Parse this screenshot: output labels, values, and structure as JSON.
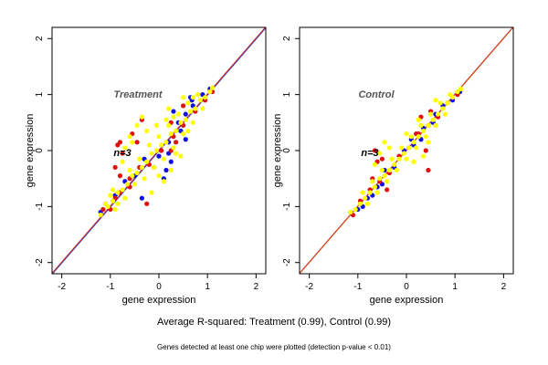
{
  "figure": {
    "caption": "Average R-squared: Treatment (0.99), Control (0.99)",
    "footnote": "Genes detected at least one chip were plotted (detection p-value < 0.01)"
  },
  "chart_data": [
    {
      "type": "scatter",
      "title": "Treatment",
      "annotation": "n=3",
      "xlabel": "gene expression",
      "ylabel": "gene expression",
      "xlim": [
        -2.2,
        2.2
      ],
      "ylim": [
        -2.2,
        2.2
      ],
      "xticks": [
        -2,
        -1,
        0,
        1,
        2
      ],
      "yticks": [
        -2,
        -1,
        0,
        1,
        2
      ],
      "grid": false,
      "reference_lines": [
        {
          "color": "#d4a017",
          "slope": 1,
          "intercept": 0
        },
        {
          "color": "#2f3fbf",
          "slope": 1,
          "intercept": -0.01
        },
        {
          "color": "#d42a2a",
          "slope": 1,
          "intercept": 0.01
        }
      ],
      "series": [
        {
          "color": "#1010e0",
          "values": [
            [
              -1.2,
              -1.1
            ],
            [
              -1.1,
              -0.95
            ],
            [
              -0.9,
              -0.8
            ],
            [
              -0.7,
              -0.55
            ],
            [
              -0.5,
              -0.45
            ],
            [
              -0.3,
              -0.15
            ],
            [
              0.0,
              -0.1
            ],
            [
              0.2,
              0.15
            ],
            [
              0.4,
              0.5
            ],
            [
              0.55,
              0.65
            ],
            [
              0.7,
              0.8
            ],
            [
              0.9,
              1.0
            ],
            [
              1.05,
              1.1
            ],
            [
              0.65,
              0.95
            ],
            [
              0.68,
              0.9
            ],
            [
              0.55,
              0.2
            ],
            [
              0.25,
              -0.2
            ],
            [
              0.15,
              -0.35
            ],
            [
              0.1,
              -0.5
            ],
            [
              -0.1,
              -0.3
            ],
            [
              -0.35,
              -0.85
            ],
            [
              0.2,
              -0.05
            ],
            [
              0.3,
              0.7
            ],
            [
              0.45,
              0.35
            ]
          ]
        },
        {
          "color": "#e01010",
          "values": [
            [
              -1.15,
              -1.05
            ],
            [
              -1.0,
              -1.05
            ],
            [
              -0.8,
              -0.75
            ],
            [
              -0.6,
              -0.65
            ],
            [
              -0.4,
              -0.3
            ],
            [
              -0.2,
              -0.25
            ],
            [
              0.05,
              0.0
            ],
            [
              0.3,
              0.25
            ],
            [
              0.5,
              0.45
            ],
            [
              0.75,
              0.7
            ],
            [
              0.95,
              0.9
            ],
            [
              1.1,
              1.05
            ],
            [
              -0.8,
              0.15
            ],
            [
              -0.85,
              0.1
            ],
            [
              -0.75,
              -0.05
            ],
            [
              -0.9,
              -0.3
            ],
            [
              -0.8,
              -0.45
            ],
            [
              -0.6,
              -0.5
            ],
            [
              -0.35,
              0.55
            ],
            [
              -0.55,
              0.3
            ],
            [
              -0.9,
              -0.85
            ],
            [
              -0.25,
              -0.95
            ],
            [
              0.25,
              0.5
            ],
            [
              0.5,
              0.8
            ],
            [
              0.35,
              0.15
            ],
            [
              0.25,
              0.0
            ],
            [
              -0.45,
              0.15
            ]
          ]
        },
        {
          "color": "#ffff00",
          "values": [
            [
              -1.2,
              -1.15
            ],
            [
              -1.05,
              -1.0
            ],
            [
              -0.95,
              -0.9
            ],
            [
              -0.85,
              -0.75
            ],
            [
              -0.75,
              -0.7
            ],
            [
              -0.65,
              -0.6
            ],
            [
              -0.55,
              -0.45
            ],
            [
              -0.45,
              -0.4
            ],
            [
              -0.35,
              -0.3
            ],
            [
              -0.25,
              -0.2
            ],
            [
              -0.15,
              -0.05
            ],
            [
              -0.05,
              0.0
            ],
            [
              0.05,
              0.1
            ],
            [
              0.15,
              0.15
            ],
            [
              0.25,
              0.3
            ],
            [
              0.35,
              0.35
            ],
            [
              0.45,
              0.5
            ],
            [
              0.55,
              0.55
            ],
            [
              0.65,
              0.7
            ],
            [
              0.75,
              0.75
            ],
            [
              0.85,
              0.9
            ],
            [
              0.95,
              0.95
            ],
            [
              1.05,
              1.05
            ],
            [
              1.1,
              1.12
            ],
            [
              -0.95,
              -0.7
            ],
            [
              -0.85,
              -0.95
            ],
            [
              -0.7,
              -0.85
            ],
            [
              -0.6,
              -0.35
            ],
            [
              -0.5,
              -0.6
            ],
            [
              -0.4,
              -0.15
            ],
            [
              -0.3,
              -0.5
            ],
            [
              -0.2,
              0.1
            ],
            [
              -0.1,
              -0.3
            ],
            [
              0.0,
              0.25
            ],
            [
              0.1,
              -0.15
            ],
            [
              0.2,
              0.45
            ],
            [
              0.3,
              0.05
            ],
            [
              0.4,
              0.65
            ],
            [
              0.5,
              0.3
            ],
            [
              0.6,
              0.85
            ],
            [
              0.7,
              0.5
            ],
            [
              0.8,
              1.0
            ],
            [
              0.9,
              0.75
            ],
            [
              -0.75,
              -0.2
            ],
            [
              -0.7,
              0.05
            ],
            [
              -0.6,
              0.25
            ],
            [
              -0.45,
              0.45
            ],
            [
              -0.35,
              0.6
            ],
            [
              -0.55,
              0.15
            ],
            [
              -0.25,
              0.35
            ],
            [
              -0.9,
              -1.05
            ],
            [
              -1.1,
              -0.95
            ],
            [
              0.1,
              -0.55
            ],
            [
              0.0,
              -0.45
            ],
            [
              0.15,
              0.55
            ],
            [
              0.3,
              0.6
            ],
            [
              0.35,
              -0.05
            ],
            [
              0.6,
              0.35
            ],
            [
              0.25,
              -0.35
            ],
            [
              -0.15,
              -0.75
            ],
            [
              -1.0,
              -0.8
            ],
            [
              0.5,
              0.95
            ],
            [
              0.45,
              -0.1
            ],
            [
              0.2,
              0.75
            ],
            [
              -0.05,
              0.45
            ],
            [
              0.7,
              0.95
            ]
          ]
        }
      ]
    },
    {
      "type": "scatter",
      "title": "Control",
      "annotation": "n=3",
      "xlabel": "gene expression",
      "ylabel": "gene expression",
      "xlim": [
        -2.2,
        2.2
      ],
      "ylim": [
        -2.2,
        2.2
      ],
      "xticks": [
        -2,
        -1,
        0,
        1,
        2
      ],
      "yticks": [
        -2,
        -1,
        0,
        1,
        2
      ],
      "grid": false,
      "reference_lines": [
        {
          "color": "#d4a017",
          "slope": 1,
          "intercept": 0
        },
        {
          "color": "#d42a2a",
          "slope": 1,
          "intercept": 0.01
        }
      ],
      "series": [
        {
          "color": "#1010e0",
          "values": [
            [
              -1.15,
              -1.1
            ],
            [
              -1.0,
              -1.05
            ],
            [
              -0.8,
              -0.85
            ],
            [
              -0.6,
              -0.65
            ],
            [
              -0.45,
              -0.35
            ],
            [
              -0.25,
              -0.3
            ],
            [
              -0.05,
              0.0
            ],
            [
              0.15,
              0.1
            ],
            [
              0.35,
              0.4
            ],
            [
              0.55,
              0.5
            ],
            [
              0.75,
              0.8
            ],
            [
              0.95,
              0.9
            ],
            [
              1.1,
              1.05
            ],
            [
              -0.9,
              -1.0
            ],
            [
              -0.7,
              -0.8
            ],
            [
              -0.5,
              -0.6
            ],
            [
              0.1,
              0.2
            ],
            [
              0.3,
              0.2
            ],
            [
              0.6,
              0.65
            ]
          ]
        },
        {
          "color": "#e01010",
          "values": [
            [
              -1.1,
              -1.15
            ],
            [
              -0.95,
              -0.9
            ],
            [
              -0.75,
              -0.7
            ],
            [
              -0.55,
              -0.55
            ],
            [
              -0.35,
              -0.4
            ],
            [
              -0.15,
              -0.1
            ],
            [
              0.05,
              0.05
            ],
            [
              0.25,
              0.3
            ],
            [
              0.45,
              0.45
            ],
            [
              0.65,
              0.6
            ],
            [
              0.85,
              0.85
            ],
            [
              1.05,
              1.0
            ],
            [
              -0.65,
              0.0
            ],
            [
              -0.6,
              -0.2
            ],
            [
              -0.7,
              -0.5
            ],
            [
              0.45,
              -0.35
            ],
            [
              0.4,
              0.0
            ],
            [
              0.2,
              0.3
            ],
            [
              -0.5,
              -0.15
            ],
            [
              -0.4,
              -0.7
            ],
            [
              0.3,
              0.6
            ],
            [
              0.5,
              0.7
            ]
          ]
        },
        {
          "color": "#ffff00",
          "values": [
            [
              -1.15,
              -1.1
            ],
            [
              -1.05,
              -1.05
            ],
            [
              -0.95,
              -0.95
            ],
            [
              -0.85,
              -0.85
            ],
            [
              -0.75,
              -0.75
            ],
            [
              -0.65,
              -0.65
            ],
            [
              -0.55,
              -0.5
            ],
            [
              -0.45,
              -0.45
            ],
            [
              -0.35,
              -0.35
            ],
            [
              -0.25,
              -0.25
            ],
            [
              -0.15,
              -0.15
            ],
            [
              -0.05,
              -0.05
            ],
            [
              0.05,
              0.05
            ],
            [
              0.15,
              0.15
            ],
            [
              0.25,
              0.25
            ],
            [
              0.35,
              0.35
            ],
            [
              0.45,
              0.45
            ],
            [
              0.55,
              0.55
            ],
            [
              0.65,
              0.65
            ],
            [
              0.75,
              0.75
            ],
            [
              0.85,
              0.85
            ],
            [
              0.95,
              0.95
            ],
            [
              1.05,
              1.05
            ],
            [
              1.12,
              1.1
            ],
            [
              -0.9,
              -0.75
            ],
            [
              -0.8,
              -0.95
            ],
            [
              -0.7,
              -0.55
            ],
            [
              -0.6,
              -0.75
            ],
            [
              -0.5,
              -0.35
            ],
            [
              -0.4,
              -0.55
            ],
            [
              -0.3,
              -0.15
            ],
            [
              -0.2,
              -0.35
            ],
            [
              -0.1,
              0.05
            ],
            [
              0.0,
              -0.15
            ],
            [
              0.1,
              0.25
            ],
            [
              0.2,
              0.05
            ],
            [
              0.3,
              0.45
            ],
            [
              0.4,
              0.25
            ],
            [
              0.5,
              0.65
            ],
            [
              0.6,
              0.45
            ],
            [
              0.7,
              0.85
            ],
            [
              0.8,
              0.65
            ],
            [
              0.9,
              1.0
            ],
            [
              -0.55,
              -0.05
            ],
            [
              -0.45,
              0.15
            ],
            [
              -0.65,
              -0.25
            ],
            [
              0.35,
              -0.1
            ],
            [
              0.45,
              0.15
            ],
            [
              0.25,
              0.55
            ],
            [
              0.6,
              0.9
            ],
            [
              -0.35,
              0.05
            ],
            [
              0.15,
              -0.2
            ],
            [
              0.0,
              0.3
            ]
          ]
        }
      ]
    }
  ]
}
